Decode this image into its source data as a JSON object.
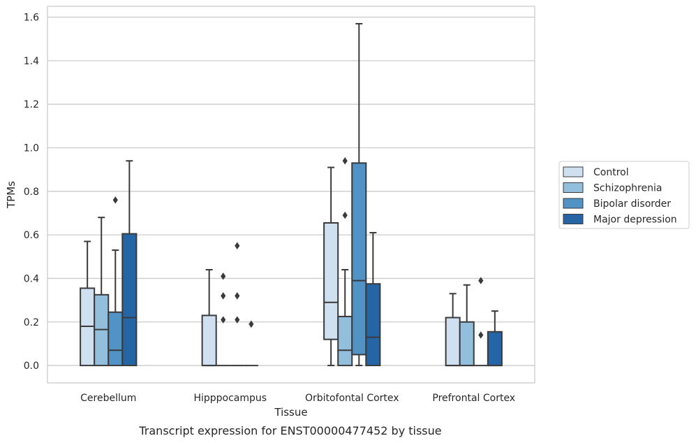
{
  "caption": "Transcript expression for ENST00000477452 by tissue",
  "chart_data": {
    "type": "boxplot",
    "xlabel": "Tissue",
    "ylabel": "TPMs",
    "ylim": [
      -0.08,
      1.65
    ],
    "yticks": [
      0.0,
      0.2,
      0.4,
      0.6,
      0.8,
      1.0,
      1.2,
      1.4,
      1.6
    ],
    "ytick_labels": [
      "0.0",
      "0.2",
      "0.4",
      "0.6",
      "0.8",
      "1.0",
      "1.2",
      "1.4",
      "1.6"
    ],
    "grid": "horizontal",
    "legend_position": "right",
    "categories": [
      "Cerebellum",
      "Hipppocampus",
      "Orbitofontal Cortex",
      "Prefrontal Cortex"
    ],
    "series": [
      {
        "name": "Control",
        "color": "#cfe0f0",
        "boxes": [
          {
            "whislo": 0.0,
            "q1": 0.0,
            "med": 0.18,
            "q3": 0.355,
            "whishi": 0.57,
            "fliers": []
          },
          {
            "whislo": 0.0,
            "q1": 0.0,
            "med": 0.0,
            "q3": 0.23,
            "whishi": 0.44,
            "fliers": []
          },
          {
            "whislo": 0.0,
            "q1": 0.12,
            "med": 0.29,
            "q3": 0.655,
            "whishi": 0.91,
            "fliers": []
          },
          {
            "whislo": 0.0,
            "q1": 0.0,
            "med": 0.0,
            "q3": 0.22,
            "whishi": 0.33,
            "fliers": []
          }
        ]
      },
      {
        "name": "Schizophrenia",
        "color": "#93bfdc",
        "boxes": [
          {
            "whislo": 0.0,
            "q1": 0.0,
            "med": 0.165,
            "q3": 0.325,
            "whishi": 0.68,
            "fliers": []
          },
          {
            "whislo": 0.0,
            "q1": 0.0,
            "med": 0.0,
            "q3": 0.0,
            "whishi": 0.0,
            "fliers": [
              0.21,
              0.32,
              0.41
            ]
          },
          {
            "whislo": 0.0,
            "q1": 0.0,
            "med": 0.07,
            "q3": 0.225,
            "whishi": 0.44,
            "fliers": [
              0.69,
              0.94
            ]
          },
          {
            "whislo": 0.0,
            "q1": 0.0,
            "med": 0.0,
            "q3": 0.2,
            "whishi": 0.37,
            "fliers": []
          }
        ]
      },
      {
        "name": "Bipolar disorder",
        "color": "#5093c4",
        "boxes": [
          {
            "whislo": 0.0,
            "q1": 0.0,
            "med": 0.07,
            "q3": 0.245,
            "whishi": 0.53,
            "fliers": [
              0.76
            ]
          },
          {
            "whislo": 0.0,
            "q1": 0.0,
            "med": 0.0,
            "q3": 0.0,
            "whishi": 0.0,
            "fliers": [
              0.21,
              0.32,
              0.55
            ]
          },
          {
            "whislo": 0.0,
            "q1": 0.05,
            "med": 0.39,
            "q3": 0.93,
            "whishi": 1.57,
            "fliers": []
          },
          {
            "whislo": 0.0,
            "q1": 0.0,
            "med": 0.0,
            "q3": 0.0,
            "whishi": 0.0,
            "fliers": [
              0.14,
              0.39
            ]
          }
        ]
      },
      {
        "name": "Major depression",
        "color": "#2565a6",
        "boxes": [
          {
            "whislo": 0.0,
            "q1": 0.0,
            "med": 0.22,
            "q3": 0.605,
            "whishi": 0.94,
            "fliers": []
          },
          {
            "whislo": 0.0,
            "q1": 0.0,
            "med": 0.0,
            "q3": 0.0,
            "whishi": 0.0,
            "fliers": [
              0.19
            ]
          },
          {
            "whislo": 0.0,
            "q1": 0.0,
            "med": 0.13,
            "q3": 0.375,
            "whishi": 0.61,
            "fliers": []
          },
          {
            "whislo": 0.0,
            "q1": 0.0,
            "med": 0.0,
            "q3": 0.155,
            "whishi": 0.25,
            "fliers": []
          }
        ]
      }
    ]
  }
}
